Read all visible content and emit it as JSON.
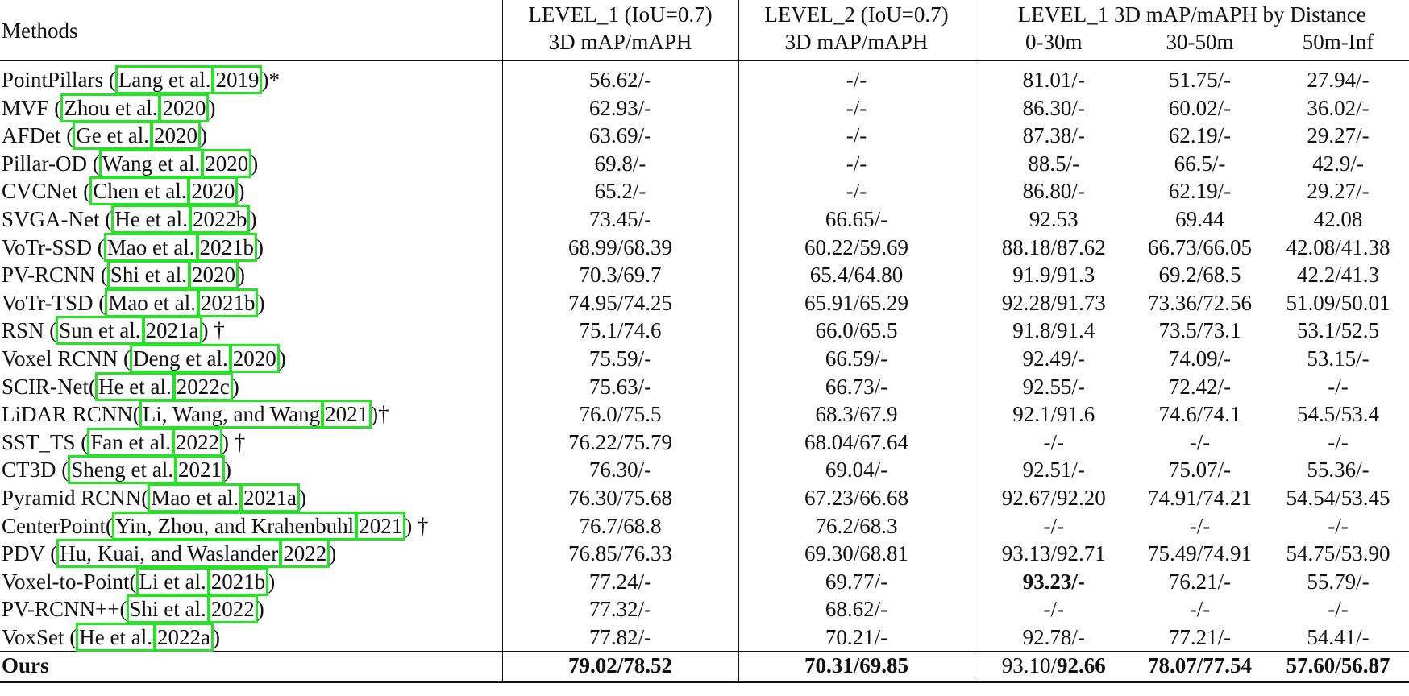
{
  "header": {
    "methods": "Methods",
    "level1": "LEVEL_1 (IoU=0.7)",
    "level2": "LEVEL_2 (IoU=0.7)",
    "distance": "LEVEL_1 3D mAP/mAPH by Distance",
    "metric1": "3D mAP/mAPH",
    "metric2": "3D mAP/mAPH",
    "d1": "0-30m",
    "d2": "30-50m",
    "d3": "50m-Inf"
  },
  "rows": [
    {
      "name": "PointPillars (",
      "c1": "Lang et al.",
      "c2": "2019",
      "suffix": ")*",
      "l1": "56.62/-",
      "l2": "-/-",
      "d1": "81.01/-",
      "d2": "51.75/-",
      "d3": "27.94/-"
    },
    {
      "name": "MVF (",
      "c1": "Zhou et al.",
      "c2": "2020",
      "suffix": ")",
      "l1": "62.93/-",
      "l2": "-/-",
      "d1": "86.30/-",
      "d2": "60.02/-",
      "d3": "36.02/-"
    },
    {
      "name": "AFDet (",
      "c1": "Ge et al.",
      "c2": "2020",
      "suffix": ")",
      "l1": "63.69/-",
      "l2": "-/-",
      "d1": "87.38/-",
      "d2": "62.19/-",
      "d3": "29.27/-"
    },
    {
      "name": "Pillar-OD (",
      "c1": "Wang et al.",
      "c2": "2020",
      "suffix": ")",
      "l1": "69.8/-",
      "l2": "-/-",
      "d1": "88.5/-",
      "d2": "66.5/-",
      "d3": "42.9/-"
    },
    {
      "name": "CVCNet (",
      "c1": "Chen et al.",
      "c2": "2020",
      "suffix": ")",
      "l1": "65.2/-",
      "l2": "-/-",
      "d1": "86.80/-",
      "d2": "62.19/-",
      "d3": "29.27/-"
    },
    {
      "name": "SVGA-Net (",
      "c1": "He et al.",
      "c2": "2022b",
      "suffix": ")",
      "l1": "73.45/-",
      "l2": "66.65/-",
      "d1": "92.53",
      "d2": "69.44",
      "d3": "42.08"
    },
    {
      "name": "VoTr-SSD (",
      "c1": "Mao et al.",
      "c2": "2021b",
      "suffix": ")",
      "l1": "68.99/68.39",
      "l2": "60.22/59.69",
      "d1": "88.18/87.62",
      "d2": "66.73/66.05",
      "d3": "42.08/41.38"
    },
    {
      "name": "PV-RCNN (",
      "c1": "Shi et al.",
      "c2": "2020",
      "suffix": ")",
      "l1": "70.3/69.7",
      "l2": "65.4/64.80",
      "d1": "91.9/91.3",
      "d2": "69.2/68.5",
      "d3": "42.2/41.3"
    },
    {
      "name": "VoTr-TSD (",
      "c1": "Mao et al.",
      "c2": "2021b",
      "suffix": ")",
      "l1": "74.95/74.25",
      "l2": "65.91/65.29",
      "d1": "92.28/91.73",
      "d2": "73.36/72.56",
      "d3": "51.09/50.01"
    },
    {
      "name": "RSN (",
      "c1": "Sun et al.",
      "c2": "2021a",
      "suffix": ") †",
      "l1": "75.1/74.6",
      "l2": "66.0/65.5",
      "d1": "91.8/91.4",
      "d2": "73.5/73.1",
      "d3": "53.1/52.5"
    },
    {
      "name": "Voxel RCNN (",
      "c1": "Deng et al.",
      "c2": "2020",
      "suffix": ")",
      "l1": "75.59/-",
      "l2": "66.59/-",
      "d1": "92.49/-",
      "d2": "74.09/-",
      "d3": "53.15/-"
    },
    {
      "name": "SCIR-Net(",
      "c1": "He et al.",
      "c2": "2022c",
      "suffix": ")",
      "l1": "75.63/-",
      "l2": "66.73/-",
      "d1": "92.55/-",
      "d2": "72.42/-",
      "d3": "-/-"
    },
    {
      "name": "LiDAR RCNN(",
      "c1": "Li, Wang, and Wang",
      "c2": "2021",
      "suffix": ")†",
      "l1": "76.0/75.5",
      "l2": "68.3/67.9",
      "d1": "92.1/91.6",
      "d2": "74.6/74.1",
      "d3": "54.5/53.4"
    },
    {
      "name": "SST_TS (",
      "c1": "Fan et al.",
      "c2": "2022",
      "suffix": ") †",
      "l1": "76.22/75.79",
      "l2": "68.04/67.64",
      "d1": "-/-",
      "d2": "-/-",
      "d3": "-/-"
    },
    {
      "name": "CT3D (",
      "c1": "Sheng et al.",
      "c2": "2021",
      "suffix": ")",
      "l1": "76.30/-",
      "l2": "69.04/-",
      "d1": "92.51/-",
      "d2": "75.07/-",
      "d3": "55.36/-"
    },
    {
      "name": "Pyramid RCNN(",
      "c1": "Mao et al.",
      "c2": "2021a",
      "suffix": ")",
      "l1": "76.30/75.68",
      "l2": "67.23/66.68",
      "d1": "92.67/92.20",
      "d2": "74.91/74.21",
      "d3": "54.54/53.45"
    },
    {
      "name": "CenterPoint(",
      "c1": "Yin, Zhou, and Krahenbuhl",
      "c2": "2021",
      "suffix": ") †",
      "l1": "76.7/68.8",
      "l2": "76.2/68.3",
      "d1": "-/-",
      "d2": "-/-",
      "d3": "-/-"
    },
    {
      "name": "PDV (",
      "c1": "Hu, Kuai, and Waslander",
      "c2": "2022",
      "suffix": ")",
      "l1": "76.85/76.33",
      "l2": "69.30/68.81",
      "d1": "93.13/92.71",
      "d2": "75.49/74.91",
      "d3": "54.75/53.90"
    },
    {
      "name": "Voxel-to-Point(",
      "c1": "Li et al.",
      "c2": "2021b",
      "suffix": ")",
      "l1": "77.24/-",
      "l2": "69.77/-",
      "d1": "93.23/-",
      "d1_bold": true,
      "d2": "76.21/-",
      "d3": "55.79/-"
    },
    {
      "name": "PV-RCNN++(",
      "c1": "Shi et al.",
      "c2": "2022",
      "suffix": ")",
      "l1": "77.32/-",
      "l2": "68.62/-",
      "d1": "-/-",
      "d2": "-/-",
      "d3": "-/-"
    },
    {
      "name": "VoxSet (",
      "c1": "He et al.",
      "c2": "2022a",
      "suffix": ")",
      "l1": "77.82/-",
      "l2": "70.21/-",
      "d1": "92.78/-",
      "d2": "77.21/-",
      "d3": "54.41/-"
    }
  ],
  "ours": {
    "name": "Ours",
    "l1": "79.02/78.52",
    "l2": "70.31/69.85",
    "d1_map": "93.10/",
    "d1_maph": "92.66",
    "d2": "78.07/77.54",
    "d3": "57.60/56.87"
  },
  "colors": {
    "citation_box": "#27e327",
    "text": "#111111"
  }
}
